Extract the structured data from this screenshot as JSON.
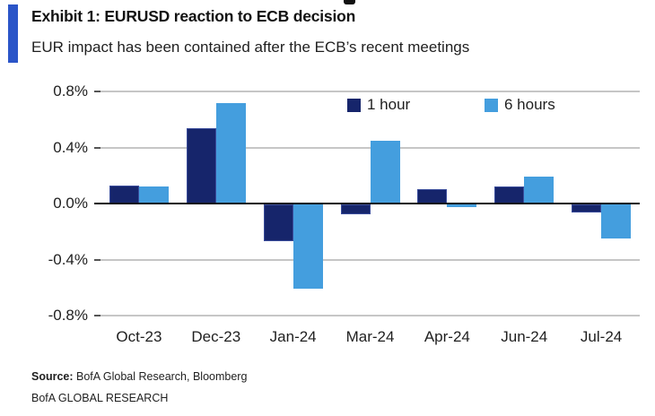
{
  "header": {
    "accent_color": "#2b55c8",
    "title": "Exhibit 1: EURUSD reaction to ECB decision",
    "subtitle": "EUR impact has been contained after the ECB’s recent meetings"
  },
  "chart_data": {
    "type": "bar",
    "title": "Exhibit 1: EURUSD reaction to ECB decision",
    "subtitle": "EUR impact has been contained after the ECB’s recent meetings",
    "categories": [
      "Oct-23",
      "Dec-23",
      "Jan-24",
      "Mar-24",
      "Apr-24",
      "Jun-24",
      "Jul-24"
    ],
    "series": [
      {
        "name": "1 hour",
        "color": "#16256b",
        "values": [
          0.13,
          0.54,
          -0.26,
          -0.07,
          0.1,
          0.12,
          -0.06
        ]
      },
      {
        "name": "6 hours",
        "color": "#449ede",
        "values": [
          0.12,
          0.72,
          -0.6,
          0.45,
          -0.02,
          0.19,
          -0.24
        ]
      }
    ],
    "ylabel": "",
    "xlabel": "",
    "ylim": [
      -0.8,
      0.8
    ],
    "yticks": [
      0.8,
      0.4,
      0.0,
      -0.4,
      -0.8
    ],
    "ytick_labels": [
      "0.8%",
      "0.4%",
      "0.0%",
      "-0.4%",
      "-0.8%"
    ],
    "grid": true,
    "legend_position": "top-inside",
    "colors": {
      "gridline": "#c6c6c6",
      "zero_axis": "#111111"
    }
  },
  "footer": {
    "source_label": "Source:",
    "source_rest": " BofA Global Research, Bloomberg",
    "branding": "BofA GLOBAL RESEARCH"
  }
}
